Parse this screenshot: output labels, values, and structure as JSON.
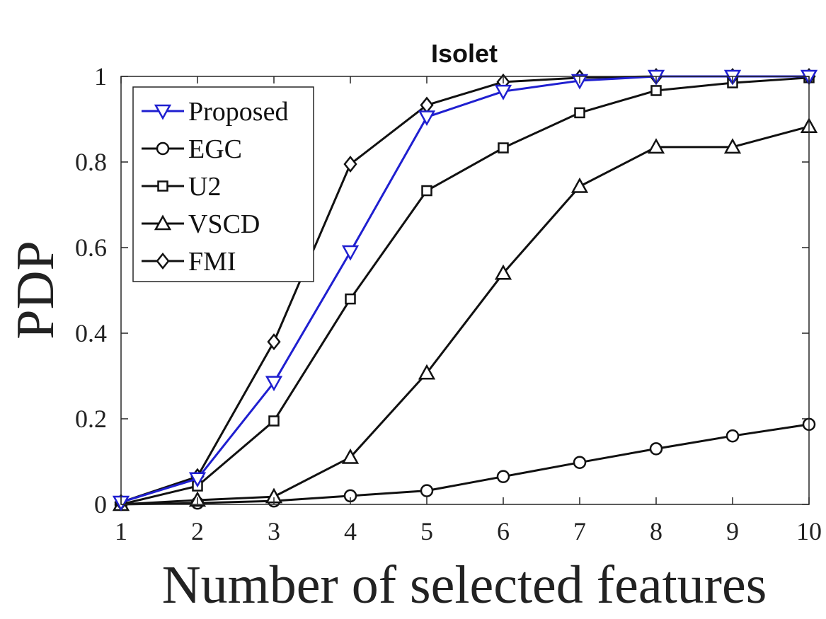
{
  "chart_data": {
    "type": "line",
    "title": "Isolet",
    "xlabel": "Number of selected features",
    "ylabel": "PDP",
    "x": [
      1,
      2,
      3,
      4,
      5,
      6,
      7,
      8,
      9,
      10
    ],
    "xlim": [
      1,
      10
    ],
    "ylim": [
      0,
      1
    ],
    "xticks": [
      "1",
      "2",
      "3",
      "4",
      "5",
      "6",
      "7",
      "8",
      "9",
      "10"
    ],
    "yticks": [
      {
        "value": 0,
        "label": "0"
      },
      {
        "value": 0.2,
        "label": "0.2"
      },
      {
        "value": 0.4,
        "label": "0.4"
      },
      {
        "value": 0.6,
        "label": "0.6"
      },
      {
        "value": 0.8,
        "label": "0.8"
      },
      {
        "value": 1,
        "label": "1"
      }
    ],
    "grid": false,
    "legend_position": "top-left",
    "series": [
      {
        "name": "Proposed",
        "color": "#1f1fd0",
        "marker": "triangle-down",
        "values": [
          0.005,
          0.06,
          0.285,
          0.59,
          0.905,
          0.965,
          0.99,
          1.0,
          1.0,
          1.0
        ]
      },
      {
        "name": "EGC",
        "color": "#111111",
        "marker": "circle",
        "values": [
          0.0,
          0.003,
          0.008,
          0.02,
          0.032,
          0.065,
          0.098,
          0.13,
          0.16,
          0.187
        ]
      },
      {
        "name": "U2",
        "color": "#111111",
        "marker": "square",
        "values": [
          0.0,
          0.043,
          0.195,
          0.48,
          0.733,
          0.833,
          0.915,
          0.967,
          0.985,
          0.997
        ]
      },
      {
        "name": "VSCD",
        "color": "#111111",
        "marker": "triangle-up",
        "values": [
          0.0,
          0.01,
          0.018,
          0.11,
          0.307,
          0.54,
          0.743,
          0.835,
          0.835,
          0.883
        ]
      },
      {
        "name": "FMI",
        "color": "#111111",
        "marker": "diamond",
        "values": [
          0.005,
          0.065,
          0.38,
          0.795,
          0.933,
          0.987,
          0.997,
          1.0,
          1.0,
          1.0
        ]
      }
    ]
  }
}
